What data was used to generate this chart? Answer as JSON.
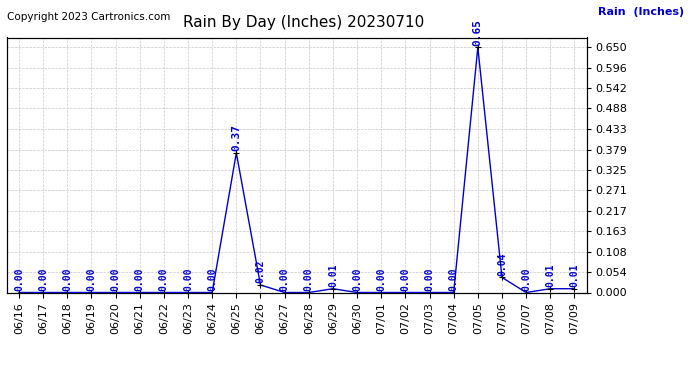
{
  "title": "Rain By Day (Inches) 20230710",
  "copyright": "Copyright 2023 Cartronics.com",
  "ylabel": "Rain  (Inches)",
  "line_color": "#0000cc",
  "marker_color": "#000000",
  "background_color": "#ffffff",
  "grid_color": "#c8c8c8",
  "dates": [
    "06/16",
    "06/17",
    "06/18",
    "06/19",
    "06/20",
    "06/21",
    "06/22",
    "06/23",
    "06/24",
    "06/25",
    "06/26",
    "06/27",
    "06/28",
    "06/29",
    "06/30",
    "07/01",
    "07/02",
    "07/03",
    "07/04",
    "07/05",
    "07/06",
    "07/07",
    "07/08",
    "07/09"
  ],
  "values": [
    0.0,
    0.0,
    0.0,
    0.0,
    0.0,
    0.0,
    0.0,
    0.0,
    0.0,
    0.37,
    0.02,
    0.0,
    0.0,
    0.01,
    0.0,
    0.0,
    0.0,
    0.0,
    0.0,
    0.65,
    0.04,
    0.0,
    0.01,
    0.01
  ],
  "ylim_min": 0.0,
  "ylim_max": 0.676,
  "yticks": [
    0.0,
    0.054,
    0.108,
    0.163,
    0.217,
    0.271,
    0.325,
    0.379,
    0.433,
    0.488,
    0.542,
    0.596,
    0.65
  ],
  "annotation_color": "#0000cc",
  "title_fontsize": 11,
  "annot_fontsize": 7,
  "tick_fontsize": 8,
  "copyright_fontsize": 7.5
}
